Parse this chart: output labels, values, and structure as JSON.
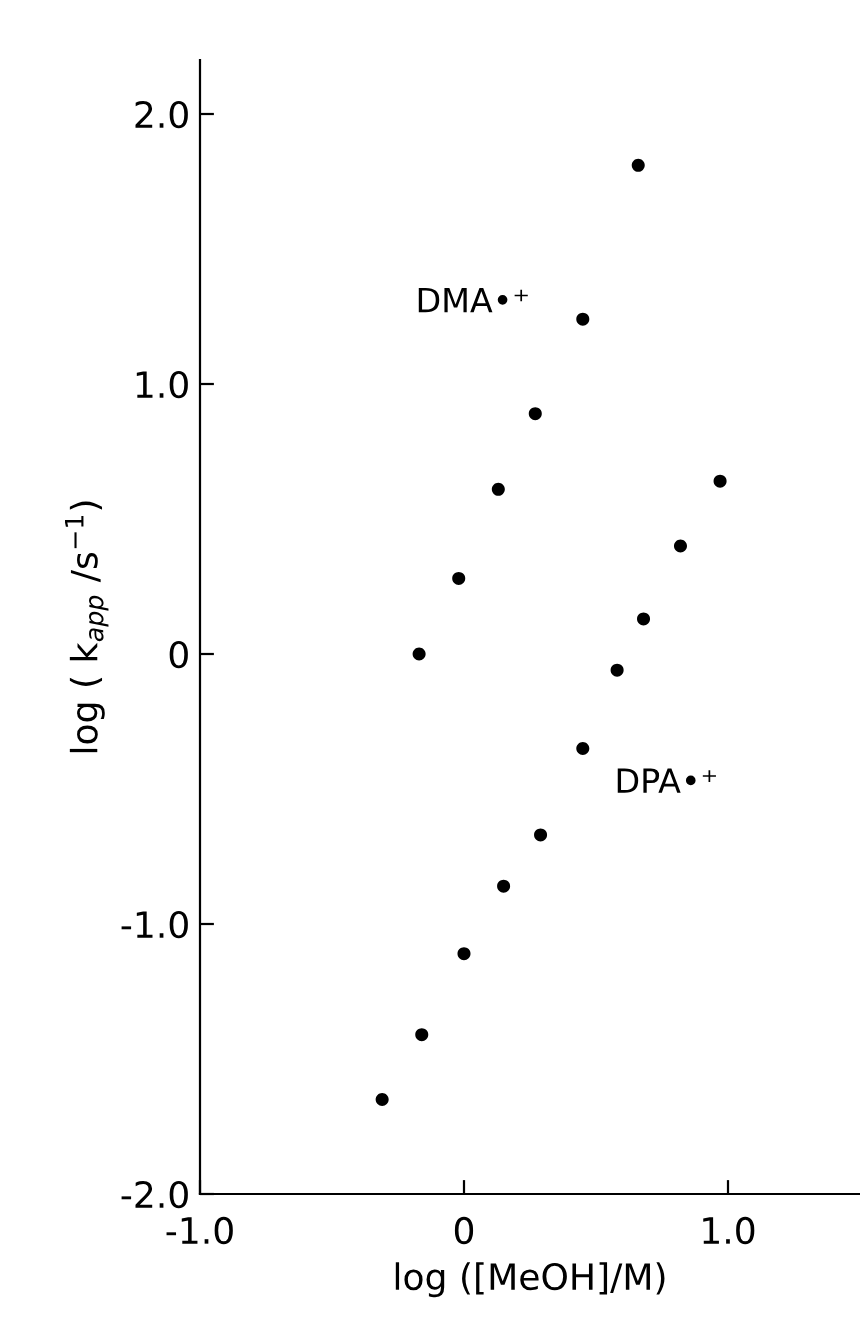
{
  "chart_data": {
    "type": "scatter",
    "xlabel": "log ([MeOH]/M)",
    "ylabel": "log ( k$_{app}$ /s$^{−1}$)",
    "series": [
      {
        "name": "DMA•⁺",
        "color": "#000000",
        "x": [
          -0.17,
          -0.02,
          0.13,
          0.27,
          0.45,
          0.66
        ],
        "values": [
          0.0,
          0.28,
          0.61,
          0.89,
          1.24,
          1.81
        ]
      },
      {
        "name": "DPA•⁺",
        "color": "#000000",
        "x": [
          -0.31,
          -0.16,
          0.0,
          0.15,
          0.29,
          0.45,
          0.58,
          0.68,
          0.82,
          0.97
        ],
        "values": [
          -1.65,
          -1.41,
          -1.11,
          -0.86,
          -0.67,
          -0.35,
          -0.06,
          0.13,
          0.4,
          0.64
        ]
      }
    ],
    "xlim": [
      -1.0,
      1.5
    ],
    "ylim": [
      -2.0,
      2.2
    ],
    "xticks": [
      {
        "value": -1.0,
        "label": "-1.0"
      },
      {
        "value": 0,
        "label": "0"
      },
      {
        "value": 1.0,
        "label": "1.0"
      }
    ],
    "yticks": [
      {
        "value": -2.0,
        "label": "-2.0"
      },
      {
        "value": -1.0,
        "label": "-1.0"
      },
      {
        "value": 0,
        "label": "0"
      },
      {
        "value": 1.0,
        "label": "1.0"
      },
      {
        "value": 2.0,
        "label": "2.0"
      }
    ],
    "marker": "circle",
    "grid": false,
    "legend": false
  }
}
